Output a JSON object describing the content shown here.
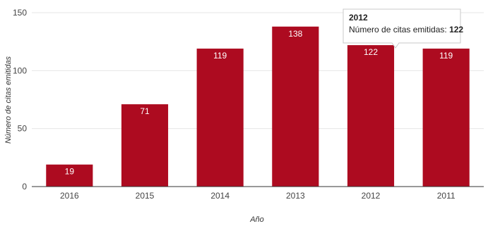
{
  "chart_data": {
    "type": "bar",
    "categories": [
      "2016",
      "2015",
      "2014",
      "2013",
      "2012",
      "2011"
    ],
    "values": [
      19,
      71,
      119,
      138,
      122,
      119
    ],
    "xlabel": "Año",
    "ylabel": "Número de citas emitidas",
    "ylim": [
      0,
      150
    ],
    "yticks": [
      0,
      50,
      100,
      150
    ],
    "bar_color": "#ad0b20",
    "grid": true,
    "tooltip": {
      "title": "2012",
      "label": "Número de citas emitidas: ",
      "value": "122"
    }
  }
}
